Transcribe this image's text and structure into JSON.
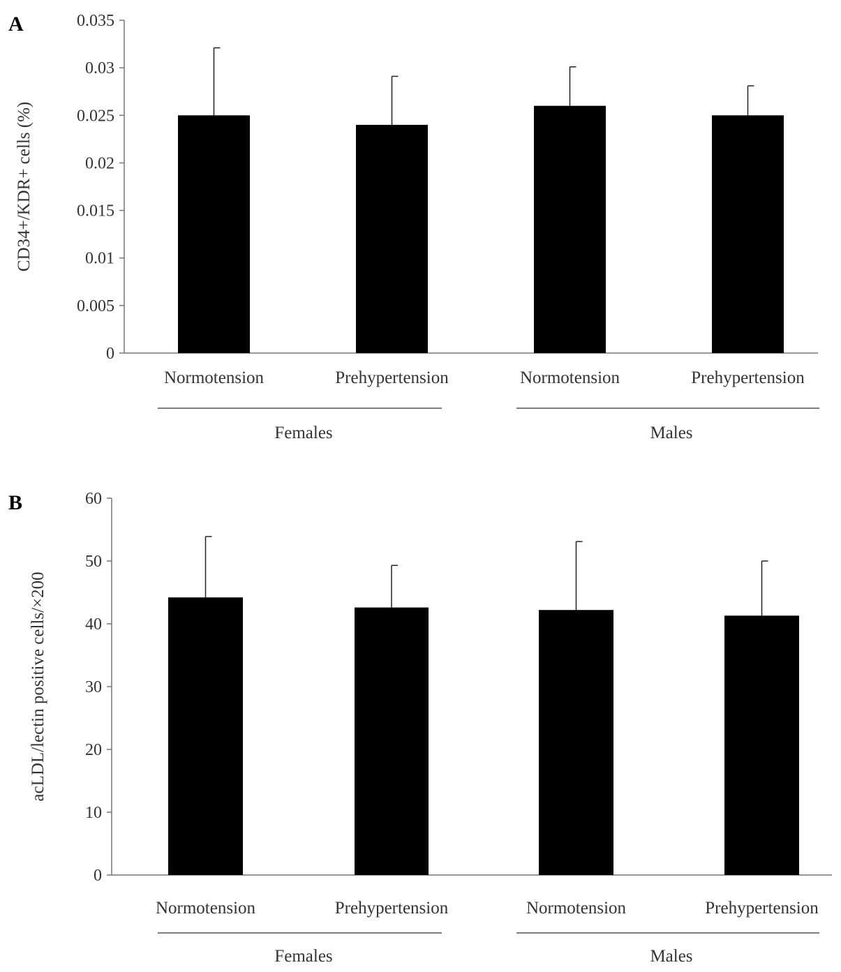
{
  "chart_data": [
    {
      "type": "bar",
      "panel_label": "A",
      "ylabel": "CD34+/KDR+ cells (%)",
      "ylim": [
        0,
        0.035
      ],
      "yticks": [
        "0",
        "0.005",
        "0.01",
        "0.015",
        "0.02",
        "0.025",
        "0.03",
        "0.035"
      ],
      "categories": [
        "Normotension",
        "Prehypertension",
        "Normotension",
        "Prehypertension"
      ],
      "groups": [
        "Females",
        "Males"
      ],
      "values": [
        0.025,
        0.024,
        0.026,
        0.025
      ],
      "error_upper": [
        0.0321,
        0.0291,
        0.0301,
        0.0281
      ],
      "grid": false,
      "bar_color": "#000000"
    },
    {
      "type": "bar",
      "panel_label": "B",
      "ylabel": "acLDL/lectin positive cells/×200",
      "ylim": [
        0,
        60
      ],
      "yticks": [
        "0",
        "10",
        "20",
        "30",
        "40",
        "50",
        "60"
      ],
      "categories": [
        "Normotension",
        "Prehypertension",
        "Normotension",
        "Prehypertension"
      ],
      "groups": [
        "Females",
        "Males"
      ],
      "values": [
        44.2,
        42.6,
        42.2,
        41.3
      ],
      "error_upper": [
        53.9,
        49.3,
        53.1,
        50.0
      ],
      "grid": false,
      "bar_color": "#000000"
    }
  ]
}
